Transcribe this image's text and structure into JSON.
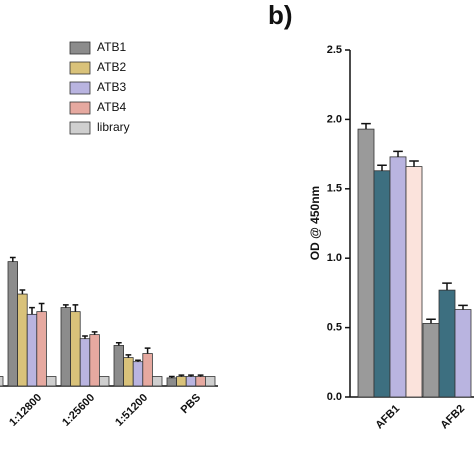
{
  "chart_data": [
    {
      "type": "bar",
      "categories": [
        null,
        "1:12800",
        "1:25600",
        "1:51200",
        "PBS"
      ],
      "series": [
        {
          "name": "ATB1",
          "color": "#8c8c8c",
          "values": [
            null,
            0.92,
            0.58,
            0.3,
            0.06
          ],
          "errors": [
            null,
            0.03,
            0.02,
            0.02,
            0.01
          ]
        },
        {
          "name": "ATB2",
          "color": "#d9c27a",
          "values": [
            null,
            0.68,
            0.55,
            0.21,
            0.07
          ],
          "errors": [
            null,
            0.03,
            0.05,
            0.02,
            0.01
          ]
        },
        {
          "name": "ATB3",
          "color": "#b9b4e0",
          "values": [
            null,
            0.53,
            0.35,
            0.18,
            0.07
          ],
          "errors": [
            null,
            0.05,
            0.02,
            0.01,
            0.01
          ]
        },
        {
          "name": "ATB4",
          "color": "#e6a9a0",
          "values": [
            null,
            0.55,
            0.38,
            0.24,
            0.07
          ],
          "errors": [
            null,
            0.06,
            0.02,
            0.04,
            0.01
          ]
        },
        {
          "name": "library",
          "color": "#cfcfcf",
          "values": [
            0.07,
            0.07,
            0.07,
            0.07,
            0.07
          ],
          "errors": [
            null,
            null,
            null,
            null,
            null
          ]
        }
      ],
      "ylim": [
        0,
        2.5
      ]
    },
    {
      "type": "bar",
      "panel_label": "b)",
      "y_label": "OD @ 450nm",
      "categories": [
        "AFB1",
        "AFB2"
      ],
      "series": [
        {
          "color": "#9a9a9a",
          "values": [
            1.93,
            0.53
          ],
          "errors": [
            0.04,
            0.03
          ]
        },
        {
          "color": "#3d6f80",
          "values": [
            1.63,
            0.77
          ],
          "errors": [
            0.04,
            0.05
          ]
        },
        {
          "color": "#b9b4e0",
          "values": [
            1.73,
            0.63
          ],
          "errors": [
            0.04,
            0.03
          ]
        },
        {
          "color": "#fbe3dc",
          "values": [
            1.66,
            null
          ],
          "errors": [
            0.04,
            null
          ]
        }
      ],
      "ylim": [
        0,
        2.5
      ],
      "yticks": [
        {
          "value": 0,
          "label": "0.0"
        },
        0.5,
        {
          "value": 1,
          "label": "1.0"
        },
        1.5,
        {
          "value": 2,
          "label": "2.0"
        },
        2.5
      ]
    }
  ]
}
